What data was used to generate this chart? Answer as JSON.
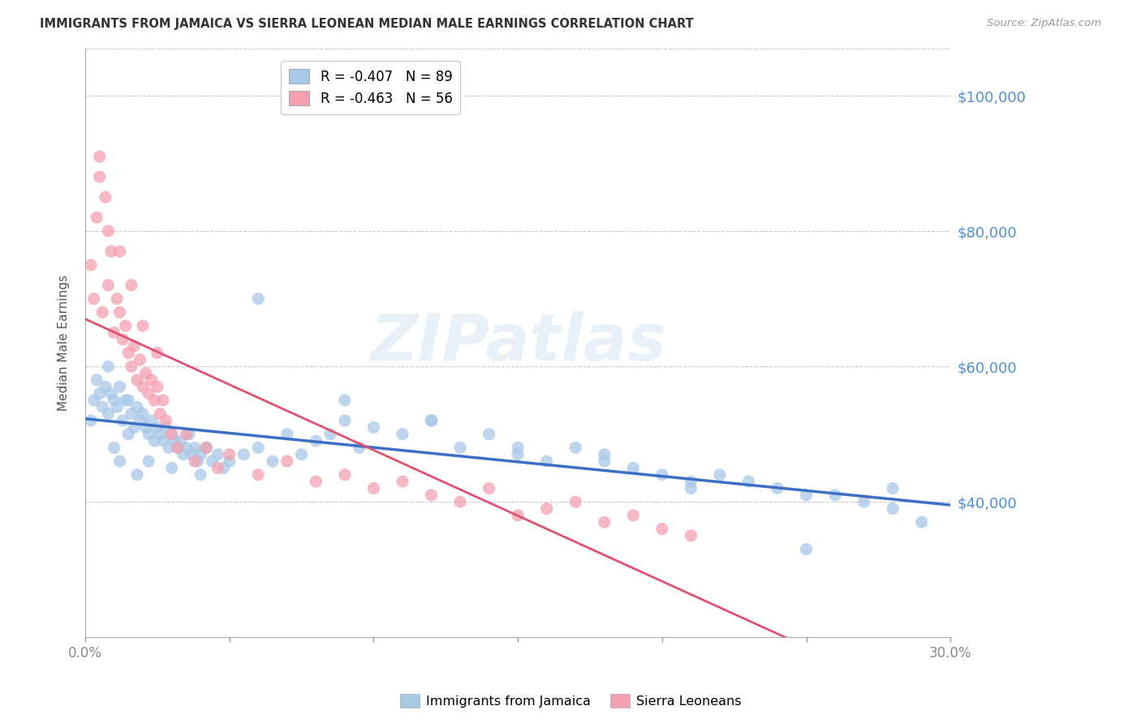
{
  "title": "IMMIGRANTS FROM JAMAICA VS SIERRA LEONEAN MEDIAN MALE EARNINGS CORRELATION CHART",
  "source": "Source: ZipAtlas.com",
  "ylabel": "Median Male Earnings",
  "ytick_values": [
    100000,
    80000,
    60000,
    40000
  ],
  "ymin": 20000,
  "ymax": 107000,
  "xmin": 0.0,
  "xmax": 0.3,
  "watermark": "ZIPatlas",
  "jamaica_color": "#a8c8e8",
  "sierra_color": "#f4a0b0",
  "jamaica_trend_color": "#3a6fc4",
  "sierra_trend_color": "#e05070",
  "title_color": "#333333",
  "right_axis_color": "#5090d0",
  "grid_color": "#cccccc",
  "legend_entries": [
    {
      "label": "R = -0.407   N = 89",
      "color": "#a8c8e8"
    },
    {
      "label": "R = -0.463   N = 56",
      "color": "#f4a0b0"
    }
  ],
  "bottom_legend": [
    "Immigrants from Jamaica",
    "Sierra Leoneans"
  ],
  "jamaica_x": [
    0.002,
    0.003,
    0.004,
    0.005,
    0.006,
    0.007,
    0.008,
    0.009,
    0.01,
    0.011,
    0.012,
    0.013,
    0.014,
    0.015,
    0.016,
    0.017,
    0.018,
    0.019,
    0.02,
    0.021,
    0.022,
    0.023,
    0.024,
    0.025,
    0.026,
    0.027,
    0.028,
    0.029,
    0.03,
    0.031,
    0.032,
    0.033,
    0.034,
    0.035,
    0.036,
    0.037,
    0.038,
    0.039,
    0.04,
    0.042,
    0.044,
    0.046,
    0.048,
    0.05,
    0.055,
    0.06,
    0.065,
    0.07,
    0.075,
    0.08,
    0.085,
    0.09,
    0.095,
    0.1,
    0.11,
    0.12,
    0.13,
    0.14,
    0.15,
    0.16,
    0.17,
    0.18,
    0.19,
    0.2,
    0.21,
    0.22,
    0.23,
    0.24,
    0.25,
    0.26,
    0.27,
    0.28,
    0.29,
    0.008,
    0.01,
    0.012,
    0.015,
    0.018,
    0.022,
    0.03,
    0.04,
    0.06,
    0.09,
    0.12,
    0.15,
    0.18,
    0.21,
    0.25,
    0.28
  ],
  "jamaica_y": [
    52000,
    55000,
    58000,
    56000,
    54000,
    57000,
    53000,
    56000,
    55000,
    54000,
    57000,
    52000,
    55000,
    50000,
    53000,
    51000,
    54000,
    52000,
    53000,
    51000,
    50000,
    52000,
    49000,
    51000,
    50000,
    49000,
    51000,
    48000,
    50000,
    49000,
    48000,
    49000,
    47000,
    48000,
    50000,
    47000,
    48000,
    46000,
    47000,
    48000,
    46000,
    47000,
    45000,
    46000,
    47000,
    48000,
    46000,
    50000,
    47000,
    49000,
    50000,
    52000,
    48000,
    51000,
    50000,
    52000,
    48000,
    50000,
    47000,
    46000,
    48000,
    47000,
    45000,
    44000,
    43000,
    44000,
    43000,
    42000,
    41000,
    41000,
    40000,
    39000,
    37000,
    60000,
    48000,
    46000,
    55000,
    44000,
    46000,
    45000,
    44000,
    70000,
    55000,
    52000,
    48000,
    46000,
    42000,
    33000,
    42000
  ],
  "sierra_x": [
    0.002,
    0.003,
    0.004,
    0.005,
    0.006,
    0.007,
    0.008,
    0.009,
    0.01,
    0.011,
    0.012,
    0.013,
    0.014,
    0.015,
    0.016,
    0.017,
    0.018,
    0.019,
    0.02,
    0.021,
    0.022,
    0.023,
    0.024,
    0.025,
    0.026,
    0.027,
    0.028,
    0.03,
    0.032,
    0.035,
    0.038,
    0.042,
    0.046,
    0.05,
    0.06,
    0.07,
    0.08,
    0.09,
    0.1,
    0.11,
    0.12,
    0.13,
    0.14,
    0.15,
    0.16,
    0.17,
    0.18,
    0.19,
    0.2,
    0.21,
    0.005,
    0.008,
    0.012,
    0.016,
    0.02,
    0.025
  ],
  "sierra_y": [
    75000,
    70000,
    82000,
    91000,
    68000,
    85000,
    72000,
    77000,
    65000,
    70000,
    68000,
    64000,
    66000,
    62000,
    60000,
    63000,
    58000,
    61000,
    57000,
    59000,
    56000,
    58000,
    55000,
    57000,
    53000,
    55000,
    52000,
    50000,
    48000,
    50000,
    46000,
    48000,
    45000,
    47000,
    44000,
    46000,
    43000,
    44000,
    42000,
    43000,
    41000,
    40000,
    42000,
    38000,
    39000,
    40000,
    37000,
    38000,
    36000,
    35000,
    88000,
    80000,
    77000,
    72000,
    66000,
    62000
  ]
}
